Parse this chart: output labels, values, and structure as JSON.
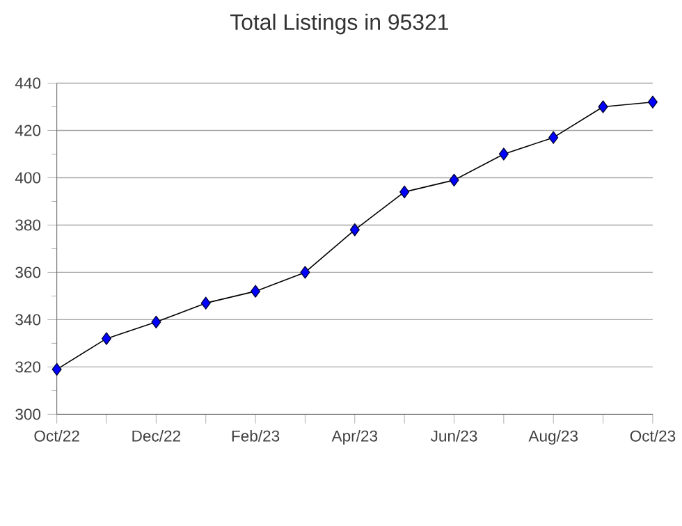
{
  "chart_data": {
    "type": "line",
    "title": "Total Listings in 95321",
    "categories": [
      "Oct/22",
      null,
      "Dec/22",
      null,
      "Feb/23",
      null,
      "Apr/23",
      null,
      "Jun/23",
      null,
      "Aug/23",
      null,
      "Oct/23"
    ],
    "series": [
      {
        "color": "#0000ff",
        "values": [
          319,
          332,
          339,
          347,
          352,
          360,
          378,
          394,
          399,
          410,
          417,
          430,
          432
        ]
      }
    ],
    "ylim": [
      300,
      440
    ],
    "yticks": [
      300,
      320,
      340,
      360,
      380,
      400,
      420,
      440
    ],
    "grid": "y",
    "marker": "diamond",
    "line_style": "solid"
  }
}
